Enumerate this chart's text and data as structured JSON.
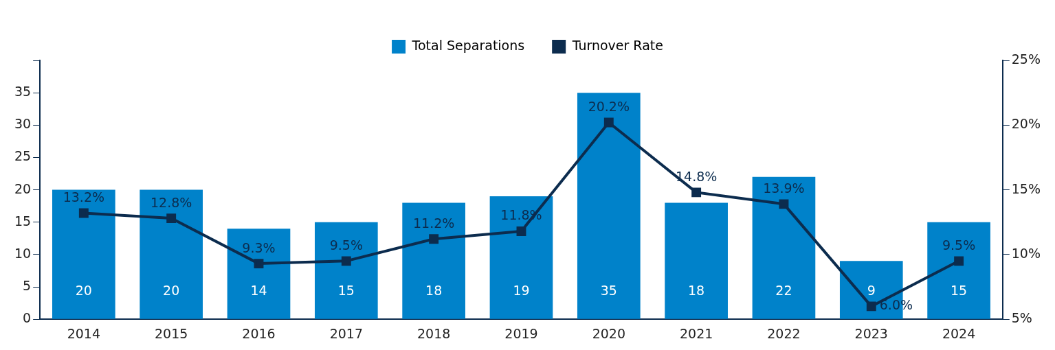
{
  "chart_data": {
    "type": "bar",
    "categories": [
      "2014",
      "2015",
      "2016",
      "2017",
      "2018",
      "2019",
      "2020",
      "2021",
      "2022",
      "2023",
      "2024"
    ],
    "series": [
      {
        "name": "Total Separations",
        "color": "#0082ca",
        "values": [
          20,
          20,
          14,
          15,
          18,
          19,
          35,
          18,
          22,
          9,
          15
        ],
        "value_labels": [
          "20",
          "20",
          "14",
          "15",
          "18",
          "19",
          "35",
          "18",
          "22",
          "9",
          "15"
        ]
      },
      {
        "name": "Turnover Rate",
        "type": "line",
        "axis": "y2",
        "color": "#0c2c4e",
        "values": [
          13.2,
          12.8,
          9.3,
          9.5,
          11.2,
          11.8,
          20.2,
          14.8,
          13.9,
          6.0,
          9.5
        ],
        "value_labels": [
          "13.2%",
          "12.8%",
          "9.3%",
          "9.5%",
          "11.2%",
          "11.8%",
          "20.2%",
          "14.8%",
          "13.9%",
          "6.0%",
          "9.5%"
        ]
      }
    ],
    "ylim": [
      0,
      40
    ],
    "yticks": [
      0,
      5,
      10,
      15,
      20,
      25,
      30,
      35,
      {
        "value": 40,
        "label": null
      }
    ],
    "y2lim": [
      5,
      25
    ],
    "y2ticks": [
      {
        "value": 5,
        "label": "5%"
      },
      {
        "value": 10,
        "label": "10%"
      },
      {
        "value": 15,
        "label": "15%"
      },
      {
        "value": 20,
        "label": "20%"
      },
      {
        "value": 25,
        "label": "25%"
      }
    ],
    "grid": false,
    "legend": "top",
    "marker": "square",
    "line_style": "solid"
  }
}
